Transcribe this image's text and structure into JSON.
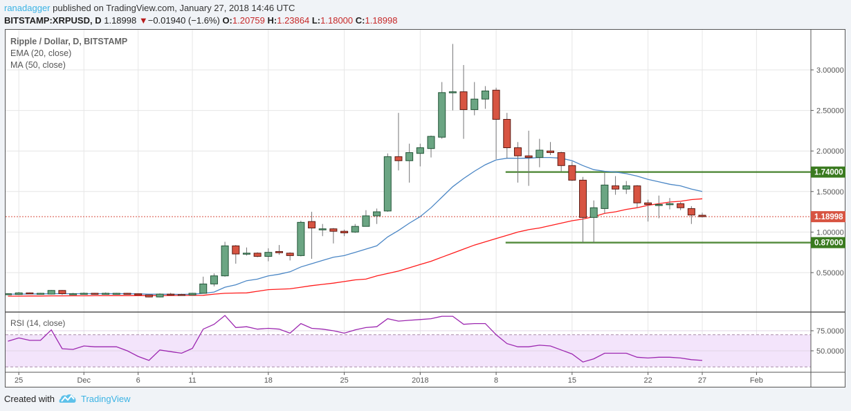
{
  "header": {
    "author": "ranadagger",
    "published": "published on TradingView.com, January 27, 2018 14:46 UTC",
    "symbol": "BITSTAMP:XRPUSD, D",
    "last": "1.18998",
    "change": "−0.01940 (−1.6%)",
    "direction_icon": "triangle-down-icon",
    "o_label": "O:",
    "o": "1.20759",
    "h_label": "H:",
    "h": "1.23864",
    "l_label": "L:",
    "l": "1.18000",
    "c_label": "C:",
    "c": "1.18998"
  },
  "legend": {
    "title": "Ripple / Dollar, D, BITSTAMP",
    "ema": "EMA (20, close)",
    "ma": "MA (50, close)",
    "rsi": "RSI (14, close)"
  },
  "footer": {
    "created": "Created with",
    "brand": "TradingView"
  },
  "colors": {
    "up": "#6ba583",
    "up_border": "#225437",
    "down": "#d75442",
    "down_border": "#5b1a13",
    "ema": "#4a86c5",
    "ma": "#ff1a1a",
    "rsi": "#9c27b0",
    "level": "#3a7a1f",
    "rsi_band": "#f3e4fb"
  },
  "chart_data": [
    {
      "type": "candlestick",
      "title": "Ripple / Dollar, D, BITSTAMP",
      "y_ticks": [
        "3.00000",
        "2.50000",
        "2.00000",
        "1.50000",
        "1.00000",
        "0.50000"
      ],
      "ylim": [
        0.1,
        3.4
      ],
      "x_ticks": [
        {
          "date": "2017-11-25",
          "label": "25"
        },
        {
          "date": "2017-12-01",
          "label": "Dec"
        },
        {
          "date": "2017-12-06",
          "label": "6"
        },
        {
          "date": "2017-12-11",
          "label": "11"
        },
        {
          "date": "2017-12-18",
          "label": "18"
        },
        {
          "date": "2017-12-25",
          "label": "25"
        },
        {
          "date": "2018-01-01",
          "label": "2018"
        },
        {
          "date": "2018-01-08",
          "label": "8"
        },
        {
          "date": "2018-01-15",
          "label": "15"
        },
        {
          "date": "2018-01-22",
          "label": "22"
        },
        {
          "date": "2018-01-27",
          "label": "27"
        },
        {
          "date": "2018-02-01",
          "label": "Feb"
        }
      ],
      "start_date": "2017-11-24",
      "candles_ohlc": [
        [
          0.24,
          0.245,
          0.235,
          0.24
        ],
        [
          0.23,
          0.26,
          0.225,
          0.25
        ],
        [
          0.25,
          0.255,
          0.24,
          0.245
        ],
        [
          0.24,
          0.25,
          0.235,
          0.245
        ],
        [
          0.235,
          0.285,
          0.23,
          0.28
        ],
        [
          0.28,
          0.285,
          0.225,
          0.24
        ],
        [
          0.24,
          0.25,
          0.23,
          0.24
        ],
        [
          0.235,
          0.255,
          0.23,
          0.245
        ],
        [
          0.245,
          0.25,
          0.235,
          0.24
        ],
        [
          0.24,
          0.255,
          0.235,
          0.245
        ],
        [
          0.245,
          0.25,
          0.24,
          0.245
        ],
        [
          0.245,
          0.25,
          0.235,
          0.24
        ],
        [
          0.24,
          0.245,
          0.22,
          0.225
        ],
        [
          0.225,
          0.23,
          0.195,
          0.2
        ],
        [
          0.2,
          0.245,
          0.195,
          0.235
        ],
        [
          0.235,
          0.25,
          0.225,
          0.23
        ],
        [
          0.23,
          0.24,
          0.22,
          0.225
        ],
        [
          0.225,
          0.25,
          0.22,
          0.245
        ],
        [
          0.245,
          0.45,
          0.24,
          0.36
        ],
        [
          0.36,
          0.49,
          0.33,
          0.46
        ],
        [
          0.46,
          0.88,
          0.45,
          0.83
        ],
        [
          0.83,
          0.84,
          0.61,
          0.73
        ],
        [
          0.73,
          0.81,
          0.71,
          0.74
        ],
        [
          0.74,
          0.75,
          0.69,
          0.7
        ],
        [
          0.7,
          0.8,
          0.64,
          0.75
        ],
        [
          0.76,
          0.84,
          0.72,
          0.745
        ],
        [
          0.74,
          0.75,
          0.65,
          0.71
        ],
        [
          0.71,
          1.14,
          0.7,
          1.12
        ],
        [
          1.13,
          1.25,
          0.67,
          1.05
        ],
        [
          1.04,
          1.1,
          0.95,
          1.04
        ],
        [
          1.04,
          1.05,
          0.86,
          1.01
        ],
        [
          1.01,
          1.03,
          0.95,
          0.99
        ],
        [
          1.0,
          1.1,
          0.99,
          1.07
        ],
        [
          1.07,
          1.27,
          1.07,
          1.2
        ],
        [
          1.2,
          1.29,
          1.1,
          1.25
        ],
        [
          1.26,
          1.97,
          1.25,
          1.93
        ],
        [
          1.93,
          2.47,
          1.76,
          1.88
        ],
        [
          1.88,
          2.09,
          1.61,
          1.98
        ],
        [
          1.97,
          2.09,
          1.81,
          2.04
        ],
        [
          2.03,
          2.19,
          1.92,
          2.18
        ],
        [
          2.17,
          2.85,
          2.15,
          2.72
        ],
        [
          2.72,
          3.32,
          2.5,
          2.73
        ],
        [
          2.73,
          3.06,
          2.15,
          2.51
        ],
        [
          2.51,
          2.85,
          2.44,
          2.64
        ],
        [
          2.64,
          2.8,
          2.52,
          2.74
        ],
        [
          2.75,
          2.78,
          1.9,
          2.39
        ],
        [
          2.39,
          2.47,
          1.91,
          2.04
        ],
        [
          2.04,
          2.11,
          1.61,
          1.94
        ],
        [
          1.94,
          2.25,
          1.57,
          1.92
        ],
        [
          1.92,
          2.15,
          1.8,
          2.01
        ],
        [
          2.0,
          2.11,
          1.95,
          1.98
        ],
        [
          1.98,
          1.99,
          1.75,
          1.82
        ],
        [
          1.82,
          1.87,
          1.63,
          1.64
        ],
        [
          1.64,
          1.68,
          0.87,
          1.18
        ],
        [
          1.18,
          1.39,
          0.87,
          1.3
        ],
        [
          1.29,
          1.74,
          1.23,
          1.58
        ],
        [
          1.57,
          1.69,
          1.46,
          1.53
        ],
        [
          1.53,
          1.63,
          1.47,
          1.57
        ],
        [
          1.57,
          1.58,
          1.3,
          1.36
        ],
        [
          1.36,
          1.4,
          1.13,
          1.34
        ],
        [
          1.33,
          1.45,
          1.17,
          1.34
        ],
        [
          1.34,
          1.42,
          1.28,
          1.35
        ],
        [
          1.35,
          1.37,
          1.27,
          1.3
        ],
        [
          1.29,
          1.32,
          1.1,
          1.21
        ],
        [
          1.20759,
          1.23864,
          1.18,
          1.18998
        ]
      ],
      "ema20": [
        0.235,
        0.235,
        0.236,
        0.237,
        0.24,
        0.24,
        0.24,
        0.24,
        0.24,
        0.24,
        0.24,
        0.24,
        0.238,
        0.234,
        0.234,
        0.233,
        0.232,
        0.234,
        0.245,
        0.26,
        0.32,
        0.35,
        0.4,
        0.42,
        0.46,
        0.48,
        0.51,
        0.57,
        0.61,
        0.65,
        0.69,
        0.71,
        0.75,
        0.79,
        0.83,
        0.94,
        1.02,
        1.11,
        1.19,
        1.3,
        1.43,
        1.56,
        1.66,
        1.75,
        1.83,
        1.89,
        1.91,
        1.91,
        1.91,
        1.92,
        1.92,
        1.91,
        1.88,
        1.82,
        1.77,
        1.75,
        1.74,
        1.72,
        1.69,
        1.65,
        1.62,
        1.59,
        1.57,
        1.53,
        1.5
      ],
      "ma50": [
        0.21,
        0.21,
        0.212,
        0.212,
        0.213,
        0.213,
        0.214,
        0.214,
        0.215,
        0.215,
        0.216,
        0.216,
        0.217,
        0.217,
        0.218,
        0.218,
        0.219,
        0.219,
        0.22,
        0.235,
        0.245,
        0.248,
        0.25,
        0.27,
        0.29,
        0.295,
        0.3,
        0.32,
        0.34,
        0.355,
        0.37,
        0.39,
        0.41,
        0.42,
        0.46,
        0.49,
        0.52,
        0.56,
        0.6,
        0.64,
        0.69,
        0.74,
        0.79,
        0.84,
        0.88,
        0.92,
        0.96,
        1.0,
        1.03,
        1.05,
        1.08,
        1.11,
        1.14,
        1.16,
        1.19,
        1.23,
        1.25,
        1.28,
        1.3,
        1.33,
        1.35,
        1.37,
        1.38,
        1.4,
        1.41
      ],
      "levels": [
        {
          "value": 1.74,
          "label": "1.74000",
          "from": "2018-01-09"
        },
        {
          "value": 0.87,
          "label": "0.87000",
          "from": "2018-01-09"
        }
      ],
      "last_price": {
        "value": 1.18998,
        "label": "1.18998"
      }
    },
    {
      "type": "line",
      "title": "RSI (14, close)",
      "y_ticks": [
        "75.0000",
        "50.0000"
      ],
      "band": [
        30,
        70
      ],
      "ylim": [
        28,
        97
      ],
      "values": [
        62,
        66,
        63,
        63,
        76,
        52.6,
        51.7,
        56,
        55,
        55,
        55,
        50,
        43,
        38,
        51,
        49,
        47,
        53,
        77,
        83,
        94,
        79,
        80,
        77,
        78,
        77,
        72,
        84,
        78,
        77,
        75,
        72,
        76,
        79,
        80,
        90,
        87,
        88,
        89,
        90,
        93,
        93,
        83,
        84,
        84,
        70,
        59,
        55,
        55,
        57,
        56,
        51,
        46,
        36,
        40,
        47,
        47,
        47,
        42,
        41,
        42,
        42,
        41,
        39,
        38
      ]
    }
  ]
}
